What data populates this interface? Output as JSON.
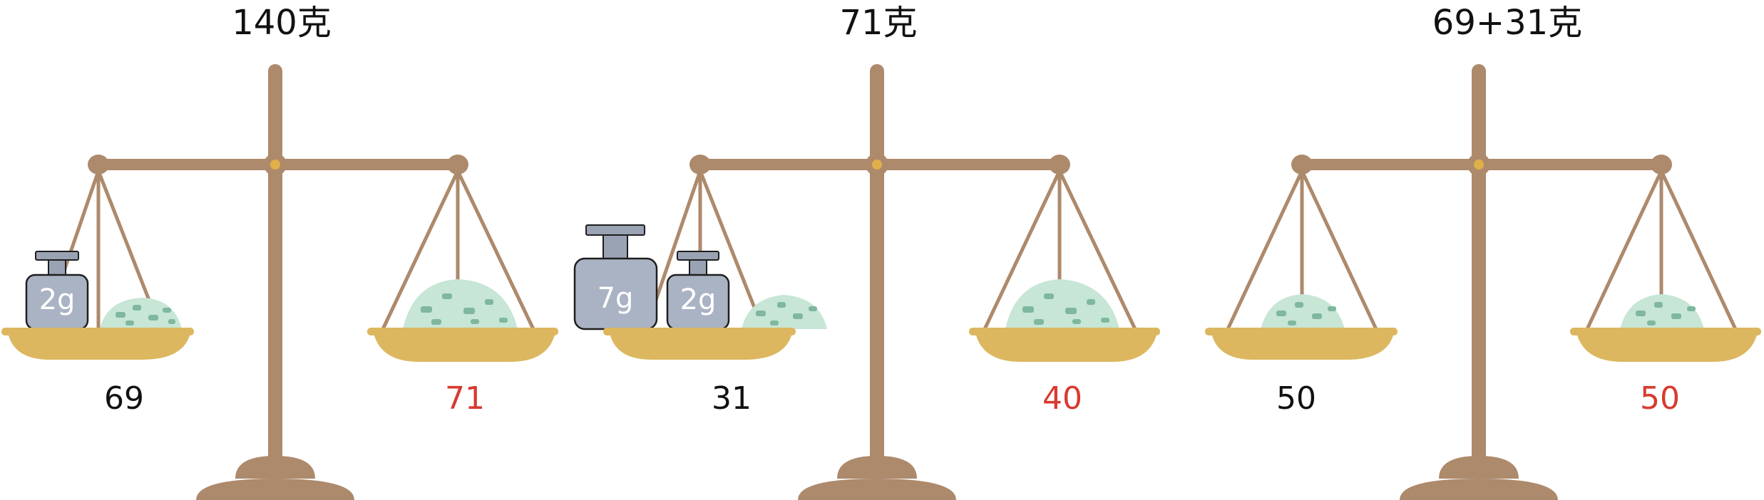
{
  "colors": {
    "frame": "#ad8a6c",
    "frame_dark": "#8f6d52",
    "pan": "#dcb75f",
    "pan_shadow": "#c9a14c",
    "pivot_dot": "#e0b049",
    "weight": "#aab3c4",
    "weight_top": "#9aa3b4",
    "weight_outline": "#1e1e1e",
    "pile": "#c7e6d6",
    "pile_dark": "#7fb79f",
    "label_black": "#111111",
    "label_red": "#d83a30"
  },
  "scales": [
    {
      "title": "140克",
      "left_label": "69",
      "right_label": "71",
      "left_weights": [
        "2g"
      ]
    },
    {
      "title": "71克",
      "left_label": "31",
      "right_label": "40",
      "left_weights": [
        "7g",
        "2g"
      ]
    },
    {
      "title": "69+31克",
      "left_label": "50",
      "right_label": "50",
      "left_weights": []
    }
  ]
}
